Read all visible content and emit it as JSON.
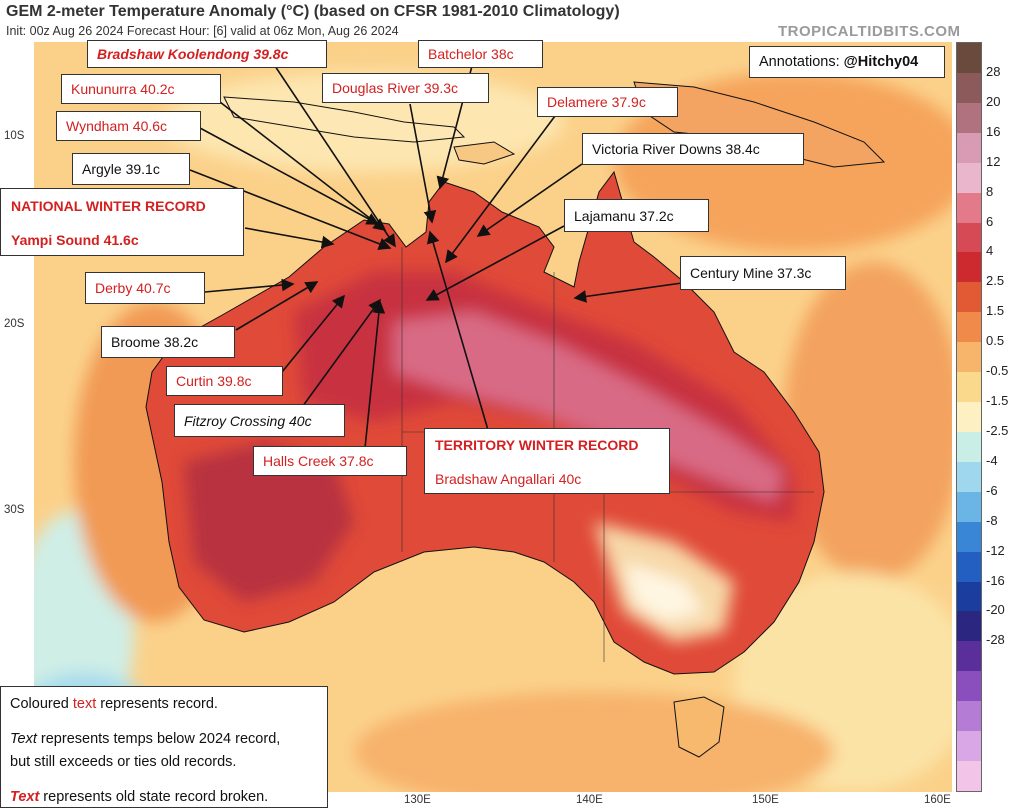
{
  "header": {
    "title": "GEM 2-meter Temperature Anomaly (°C) (based on CFSR 1981-2010 Climatology)",
    "subtitle": "Init: 00z Aug 26 2024   Forecast Hour: [6]   valid at 06z Mon, Aug 26 2024",
    "brand": "TROPICALTIDBITS.COM"
  },
  "credit": {
    "label": "Annotations:",
    "handle": "@Hitchy04"
  },
  "lat_labels": [
    "10S",
    "20S",
    "30S"
  ],
  "lon_labels": [
    "130E",
    "140E",
    "150E",
    "160E"
  ],
  "colorbar": {
    "ticks": [
      "28",
      "20",
      "16",
      "12",
      "8",
      "6",
      "4",
      "2.5",
      "1.5",
      "0.5",
      "-0.5",
      "-1.5",
      "-2.5",
      "-4",
      "-6",
      "-8",
      "-12",
      "-16",
      "-20",
      "-28"
    ],
    "colors": [
      "#6b4a3e",
      "#8c5a5a",
      "#b0727f",
      "#d99bb4",
      "#eab6cc",
      "#e27a8a",
      "#d64a55",
      "#cc2a2e",
      "#e15a33",
      "#f08a4a",
      "#f6b56a",
      "#fbd98c",
      "#fdf1c4",
      "#c8eee6",
      "#9fd8ee",
      "#6ab5e6",
      "#3a86d6",
      "#235fc0",
      "#1b3d9e",
      "#2b2680",
      "#5a2f9c",
      "#8a4fbd",
      "#b57cd6",
      "#d9a6e6",
      "#f2c4e8"
    ]
  },
  "annotations": {
    "bradshaw_koolendong": "Bradshaw Koolendong 39.8c",
    "batchelor": "Batchelor 38c",
    "kununurra": "Kununurra 40.2c",
    "douglas_river": "Douglas River 39.3c",
    "delamere": "Delamere 37.9c",
    "wyndham": "Wyndham 40.6c",
    "victoria_river_downs": "Victoria River Downs 38.4c",
    "argyle": "Argyle 39.1c",
    "national_record_title": "NATIONAL WINTER RECORD",
    "yampi_sound": "Yampi Sound 41.6c",
    "lajamanu": "Lajamanu 37.2c",
    "century_mine": "Century Mine 37.3c",
    "derby": "Derby 40.7c",
    "broome": "Broome 38.2c",
    "curtin": "Curtin 39.8c",
    "fitzroy_crossing": "Fitzroy Crossing 40c",
    "territory_record_title": "TERRITORY WINTER RECORD",
    "bradshaw_angallari": "Bradshaw Angallari 40c",
    "halls_creek": "Halls Creek 37.8c"
  },
  "legend": {
    "line1_pre": "Coloured ",
    "line1_word": "text",
    "line1_post": " represents record.",
    "line2_word": "Text",
    "line2_post": " represents temps below 2024 record,",
    "line3": "but still exceeds or ties old records.",
    "line4_word": "Text",
    "line4_post": " represents old state record broken."
  }
}
